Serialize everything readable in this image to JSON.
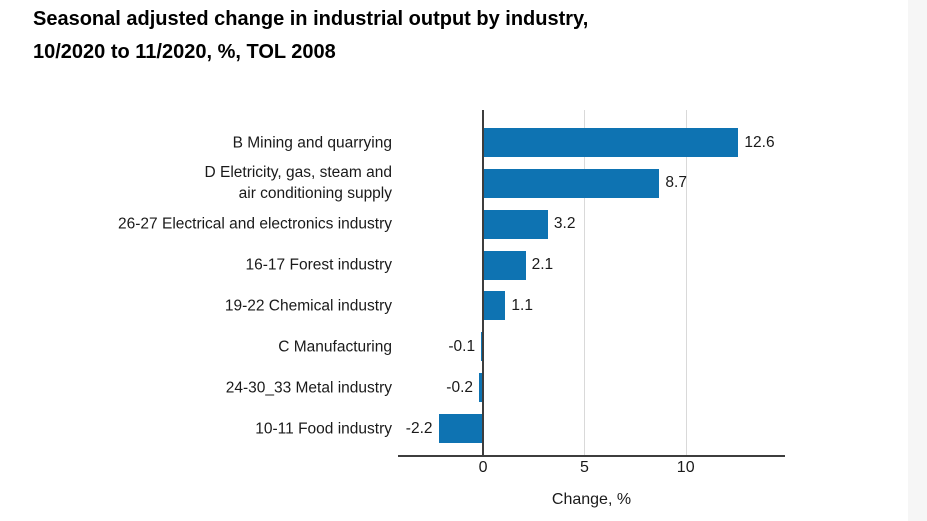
{
  "title": {
    "line1": "Seasonal adjusted change in industrial output by industry,",
    "line2": "10/2020 to 11/2020, %, TOL 2008"
  },
  "chart_data": {
    "type": "bar",
    "orientation": "horizontal",
    "title": "Seasonal adjusted change in industrial output by industry, 10/2020 to 11/2020, %, TOL 2008",
    "categories": [
      "B Mining and quarrying",
      "D Eletricity, gas, steam and\nair conditioning supply",
      "26-27 Electrical and electronics industry",
      "16-17 Forest industry",
      "19-22 Chemical industry",
      "C Manufacturing",
      "24-30_33 Metal industry",
      "10-11 Food industry"
    ],
    "values": [
      12.6,
      8.7,
      3.2,
      2.1,
      1.1,
      -0.1,
      -0.2,
      -2.2
    ],
    "value_labels": [
      "12.6",
      "8.7",
      "3.2",
      "2.1",
      "1.1",
      "-0.1",
      "-0.2",
      "-2.2"
    ],
    "xlabel": "Change, %",
    "xticks": [
      0,
      5,
      10
    ],
    "xtick_labels": [
      "0",
      "5",
      "10"
    ],
    "xlim": [
      -4.2,
      14.9
    ],
    "grid": true,
    "legend": "none",
    "colors": {
      "bar": "#0e73b2",
      "axis": "#3d3d3d",
      "grid": "#d9d9d9",
      "text": "#1a1a1a",
      "title_text": "#000000",
      "page_strip": "#f6f6f6"
    }
  }
}
